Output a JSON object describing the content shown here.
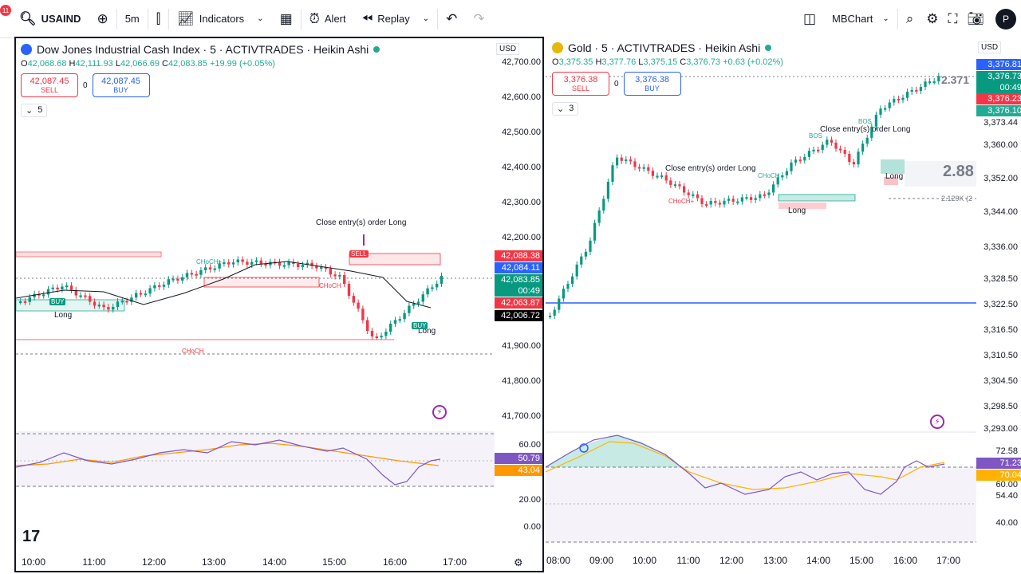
{
  "toolbar": {
    "notification_count": "11",
    "symbol": "USAIND",
    "interval": "5m",
    "indicators_label": "Indicators",
    "alert_label": "Alert",
    "replay_label": "Replay",
    "layout_name": "MBChart",
    "avatar_letter": "P"
  },
  "left_chart": {
    "title": "Dow Jones Industrial Cash Index · 5 · ACTIVTRADES · Heikin Ashi",
    "ohlc": {
      "o": "42,068.68",
      "h": "42,111.93",
      "l": "42,066.69",
      "c": "42,083.85",
      "chg": "+19.99 (+0.05%)"
    },
    "sell": {
      "price": "42,087.45",
      "label": "SELL"
    },
    "buy": {
      "price": "42,087.45",
      "label": "BUY"
    },
    "spread": "0",
    "indicator_count": "5",
    "currency": "USD",
    "price_levels": [
      "42,700.00",
      "42,600.00",
      "42,500.00",
      "42,400.00",
      "42,300.00",
      "42,200.00",
      "41,900.00",
      "41,800.00",
      "41,700.00"
    ],
    "price_tags": [
      {
        "text": "42,088.38",
        "color": "#f23645"
      },
      {
        "text": "42,084.11",
        "color": "#2962ff"
      },
      {
        "text": "42,083.85",
        "color": "#089981"
      },
      {
        "text": "00:49",
        "color": "#089981"
      },
      {
        "text": "42,063.87",
        "color": "#f23645"
      },
      {
        "text": "42,006.72",
        "color": "#000000"
      }
    ],
    "osc_levels": [
      "60.00",
      "20.00",
      "0.00"
    ],
    "osc_tags": [
      {
        "text": "50.79",
        "color": "#7e57c2"
      },
      {
        "text": "43.04",
        "color": "#ff9800"
      }
    ],
    "time_labels": [
      "10:00",
      "11:00",
      "12:00",
      "13:00",
      "14:00",
      "15:00",
      "16:00",
      "17:00"
    ],
    "annotations": {
      "close_entry": "Close entry(s) order Long",
      "long1": "Long",
      "long2": "Long",
      "choch1": "CHoCH+",
      "choch2": "CHoCH",
      "choch3": "CHoCH",
      "sell_tag": "SELL",
      "buy_tag1": "BUY",
      "buy_tag2": "BUY"
    }
  },
  "right_chart": {
    "title": "Gold · 5 · ACTIVTRADES · Heikin Ashi",
    "ohlc": {
      "o": "3,375.35",
      "h": "3,377.76",
      "l": "3,375.15",
      "c": "3,376.73",
      "chg": "+0.63 (+0.02%)"
    },
    "sell": {
      "price": "3,376.38",
      "label": "SELL"
    },
    "buy": {
      "price": "3,376.38",
      "label": "BUY"
    },
    "spread": "0",
    "indicator_count": "3",
    "currency": "USD",
    "price_levels": [
      "3,373.44",
      "3,360.00",
      "3,352.00",
      "3,344.00",
      "3,336.00",
      "3,328.50",
      "3,322.50",
      "3,316.50",
      "3,310.50",
      "3,304.50",
      "3,298.50",
      "3,293.00"
    ],
    "price_tags": [
      {
        "text": "3,376.81",
        "color": "#2962ff"
      },
      {
        "text": "3,376.73",
        "color": "#089981"
      },
      {
        "text": "00:49",
        "color": "#089981"
      },
      {
        "text": "3,376.23",
        "color": "#f23645"
      },
      {
        "text": "3,376.10",
        "color": "#22ab94"
      }
    ],
    "osc_levels": [
      "72.58",
      "60.00",
      "54.40",
      "40.00"
    ],
    "osc_tags": [
      {
        "text": "71.23",
        "color": "#7e57c2"
      },
      {
        "text": "70.04",
        "color": "#ffb300"
      }
    ],
    "time_labels": [
      "08:00",
      "09:00",
      "10:00",
      "11:00",
      "12:00",
      "13:00",
      "14:00",
      "15:00",
      "16:00",
      "17:00"
    ],
    "annotations": {
      "close_entry1": "Close entry(s) order Long",
      "close_entry2": "Close entry(s) order Long",
      "long1": "Long",
      "long2": "Long",
      "bos1": "BOS",
      "bos2": "BOS",
      "choch1": "CHoCH",
      "choch2": "CHoCH+",
      "big_value": "2.88",
      "top_value": "2.371",
      "volume_label": "2.129K (2"
    }
  },
  "colors": {
    "up": "#089981",
    "down": "#f23645",
    "accent": "#2962ff",
    "osc_line": "#7e57c2",
    "osc_ma": "#ff9800"
  },
  "icons": [
    "plus-circle-icon",
    "bar-style-icon",
    "indicators-icon",
    "layout-icon",
    "alert-icon",
    "replay-icon",
    "undo-icon",
    "redo-icon",
    "layout-panels-icon",
    "search-icon",
    "settings-icon",
    "fullscreen-icon",
    "camera-icon"
  ]
}
